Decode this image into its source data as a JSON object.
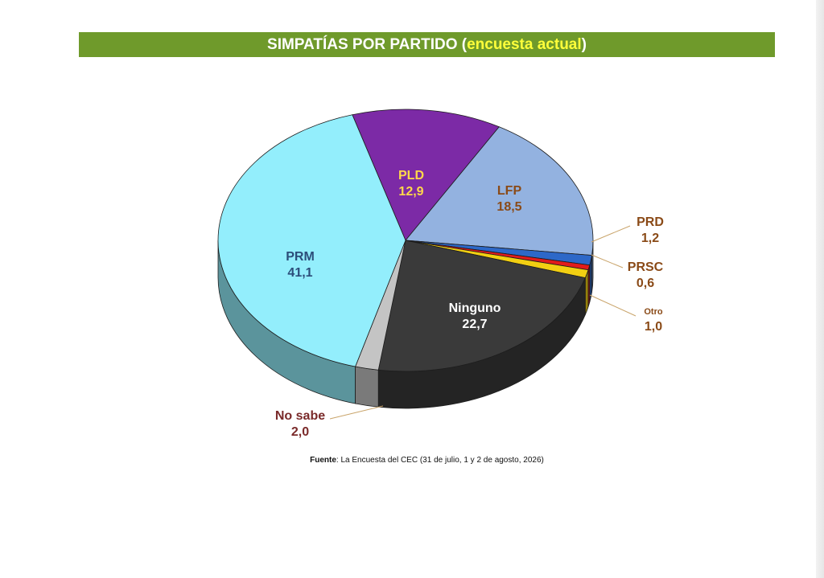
{
  "title": {
    "main": "SIMPATÍAS POR PARTIDO (",
    "highlight": "encuesta actual",
    "close": ")"
  },
  "source": {
    "label": "Fuente",
    "text": ": La Encuesta del CEC (31 de julio, 1 y 2 de agosto, 2026)"
  },
  "colors": {
    "title_bar": "#6f9a2b",
    "title_highlight": "#ffff3a"
  },
  "chart_data": {
    "type": "pie",
    "style": "3d",
    "title": "SIMPATÍAS POR PARTIDO (encuesta actual)",
    "slices": [
      {
        "label": "PLD",
        "value": "12,9",
        "share": 12.9,
        "color": "#7c2aa6",
        "label_color": "#ffd84a",
        "label_placement": "inside"
      },
      {
        "label": "LFP",
        "value": "18,5",
        "share": 18.5,
        "color": "#93b2e0",
        "label_color": "#8a4a17",
        "label_placement": "inside"
      },
      {
        "label": "PRD",
        "value": "1,2",
        "share": 1.2,
        "color": "#2d68c8",
        "label_color": "#8a4a17",
        "label_placement": "outside"
      },
      {
        "label": "PRSC",
        "value": "0,6",
        "share": 0.6,
        "color": "#e21b1b",
        "label_color": "#8a4a17",
        "label_placement": "outside"
      },
      {
        "label": "Otro",
        "value": "1,0",
        "share": 1.0,
        "color": "#f2cf12",
        "label_color": "#8a4a17",
        "label_placement": "outside"
      },
      {
        "label": "Ninguno",
        "value": "22,7",
        "share": 22.7,
        "color": "#3a3a3a",
        "label_color": "#ffffff",
        "label_placement": "inside"
      },
      {
        "label": "No sabe",
        "value": "2,0",
        "share": 2.0,
        "color": "#c4c4c4",
        "label_color": "#7a2a2a",
        "label_placement": "outside"
      },
      {
        "label": "PRM",
        "value": "41,1",
        "share": 41.1,
        "color": "#93eefc",
        "label_color": "#2c4e7a",
        "label_placement": "inside"
      }
    ],
    "legend": "none"
  }
}
